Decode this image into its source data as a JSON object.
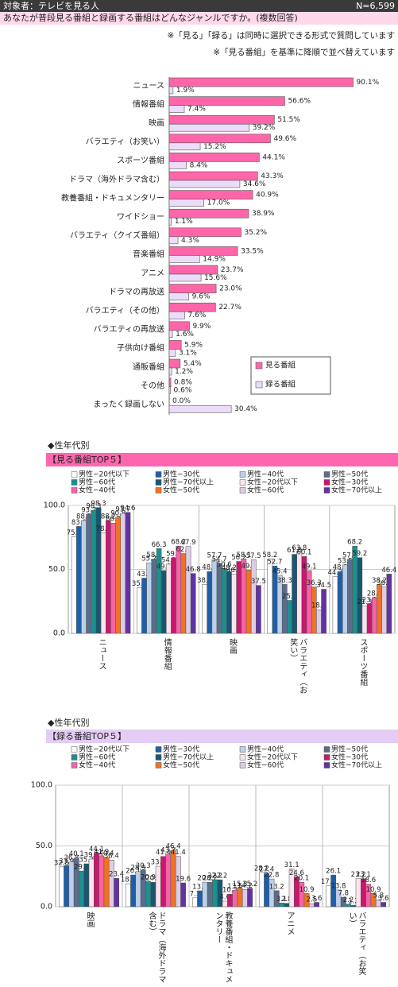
{
  "header": {
    "target": "対象者：テレビを見る人",
    "n": "N=6,599",
    "question": "あなたが普段見る番組と録画する番組はどんなジャンルですか。(複数回答)",
    "notes": [
      "※「見る」「録る」は同時に選択できる形式で質問しています",
      "※「見る番組」を基準に降順で並べ替えています"
    ]
  },
  "chart_data": [
    {
      "type": "bar",
      "orientation": "horizontal",
      "legend": "lower right",
      "categories": [
        "ニュース",
        "情報番組",
        "映画",
        "バラエティ（お笑い）",
        "スポーツ番組",
        "ドラマ（海外ドラマ含む）",
        "教養番組・ドキュメンタリー",
        "ワイドショー",
        "バラエティ（クイズ番組）",
        "音楽番組",
        "アニメ",
        "ドラマの再放送",
        "バラエティ（その他）",
        "バラエティの再放送",
        "子供向け番組",
        "通販番組",
        "その他",
        "まったく録画しない"
      ],
      "xlim": [
        0,
        100
      ],
      "series": [
        {
          "name": "見る番組",
          "color": "#ff66aa",
          "values": [
            90.1,
            56.6,
            51.5,
            49.6,
            44.1,
            43.3,
            40.9,
            38.9,
            35.2,
            33.5,
            23.7,
            23.0,
            22.7,
            9.9,
            5.9,
            5.4,
            0.8,
            0.0
          ],
          "value_labels": [
            "90.1%",
            "56.6%",
            "51.5%",
            "49.6%",
            "44.1%",
            "43.3%",
            "40.9%",
            "38.9%",
            "35.2%",
            "33.5%",
            "23.7%",
            "23.0%",
            "22.7%",
            "9.9%",
            "5.9%",
            "5.4%",
            "0.8%",
            "0.0%"
          ]
        },
        {
          "name": "録る番組",
          "color": "#ecdcfa",
          "values": [
            1.9,
            7.4,
            39.2,
            15.2,
            8.4,
            34.6,
            17.0,
            1.1,
            4.3,
            14.9,
            15.6,
            9.6,
            7.6,
            1.6,
            3.1,
            1.2,
            0.6,
            30.4
          ],
          "value_labels": [
            "1.9%",
            "7.4%",
            "39.2%",
            "15.2%",
            "8.4%",
            "34.6%",
            "17.0%",
            "1.1%",
            "4.3%",
            "14.9%",
            "15.6%",
            "9.6%",
            "7.6%",
            "1.6%",
            "3.1%",
            "1.2%",
            "0.6%",
            "30.4%"
          ]
        }
      ]
    },
    {
      "type": "bar",
      "section": "◆性年代別",
      "title": "【見る番組TOP５】",
      "title_background": "#ff66b0",
      "grid": true,
      "categories": [
        "ニュース",
        "情報番組",
        "映画",
        "バラエティ（お笑い）",
        "スポーツ番組"
      ],
      "ylim": [
        0,
        100
      ],
      "yticks": [
        {
          "value": 0,
          "label": "0.0"
        },
        {
          "value": 50,
          "label": "50.0"
        },
        {
          "value": 100,
          "label": "100.0"
        }
      ],
      "series": [
        {
          "name": "男性−20代以下",
          "color": "#ffffff",
          "values": [
            75.6,
            35.6,
            38.3,
            58.2,
            44.3
          ]
        },
        {
          "name": "男性−30代",
          "color": "#1f5fa8",
          "values": [
            83.6,
            43.2,
            48.3,
            52.7,
            48.3
          ]
        },
        {
          "name": "男性−40代",
          "color": "#bcd0e8",
          "values": [
            88.2,
            55.2,
            57.7,
            45.4,
            53.5
          ]
        },
        {
          "name": "男性−50代",
          "color": "#5c6c8c",
          "values": [
            93.2,
            58.1,
            54.7,
            38.3,
            57.9
          ]
        },
        {
          "name": "男性−60代",
          "color": "#1e8f8f",
          "values": [
            96.3,
            66.3,
            50.6,
            25.8,
            68.2
          ]
        },
        {
          "name": "男性−70代以上",
          "color": "#1a5670",
          "values": [
            98.3,
            49.1,
            48.2,
            61.8,
            59.2
          ]
        },
        {
          "name": "女性−20代以下",
          "color": "#fbe4ee",
          "values": [
            78.5,
            54.1,
            46.3,
            63.8,
            21.3
          ]
        },
        {
          "name": "女性−30代",
          "color": "#c8186e",
          "values": [
            88.2,
            59.1,
            56.2,
            60.1,
            23.1
          ]
        },
        {
          "name": "女性−40代",
          "color": "#f464a6",
          "values": [
            86.2,
            68.2,
            58.1,
            49.1,
            28.1
          ]
        },
        {
          "name": "女性−50代",
          "color": "#f07222",
          "values": [
            90.8,
            62.4,
            49.5,
            36.3,
            38.2
          ]
        },
        {
          "name": "女性−60代",
          "color": "#dccce4",
          "values": [
            93.7,
            67.9,
            57.5,
            18.5,
            36.3
          ]
        },
        {
          "name": "女性−70代以上",
          "color": "#6232a2",
          "values": [
            94.6,
            46.8,
            37.5,
            34.5,
            46.4
          ]
        }
      ]
    },
    {
      "type": "bar",
      "section": "◆性年代別",
      "title": "【録る番組TOP５】",
      "title_background": "#e4ccf4",
      "grid": true,
      "categories": [
        "映画",
        "ドラマ（海外ドラマ含む）",
        "教養番組・ドキュメンタリー",
        "アニメ",
        "バラエティ（お笑い）"
      ],
      "ylim": [
        0,
        100
      ],
      "yticks": [
        {
          "value": 0,
          "label": "0.0"
        },
        {
          "value": 50,
          "label": "50.0"
        },
        {
          "value": 100,
          "label": "100.0"
        }
      ],
      "series": [
        {
          "name": "男性−20代以下",
          "color": "#ffffff",
          "values": [
            32.8,
            18.9,
            7.3,
            28.2,
            17.2
          ]
        },
        {
          "name": "男性−30代",
          "color": "#1f5fa8",
          "values": [
            33.9,
            26.1,
            13.1,
            27.4,
            26.1
          ]
        },
        {
          "name": "男性−40代",
          "color": "#bcd0e8",
          "values": [
            36.8,
            28.9,
            20.2,
            22.8,
            13.8
          ]
        },
        {
          "name": "男性−50代",
          "color": "#5c6c8c",
          "values": [
            40.1,
            30.3,
            20.2,
            13.2,
            7.8
          ]
        },
        {
          "name": "男性−60代",
          "color": "#1e8f8f",
          "values": [
            29.4,
            20.9,
            22.2,
            3.1,
            2.2
          ]
        },
        {
          "name": "男性−70代以上",
          "color": "#1a5670",
          "values": [
            35.3,
            20.2,
            22.2,
            2.8,
            1.2
          ]
        },
        {
          "name": "女性−20代以下",
          "color": "#fbe4ee",
          "values": [
            39.2,
            33.3,
            4.6,
            31.1,
            23.2
          ]
        },
        {
          "name": "女性−30代",
          "color": "#c8186e",
          "values": [
            44.1,
            41.4,
            10.3,
            24.6,
            23.1
          ]
        },
        {
          "name": "女性−40代",
          "color": "#f464a6",
          "values": [
            41.9,
            43.2,
            13.5,
            20.1,
            18.6
          ]
        },
        {
          "name": "女性−50代",
          "color": "#f07222",
          "values": [
            40.4,
            46.4,
            15.3,
            10.9,
            10.9
          ]
        },
        {
          "name": "女性−60代",
          "color": "#dccce4",
          "values": [
            38.4,
            41.4,
            14.2,
            2.5,
            5.8
          ]
        },
        {
          "name": "女性−70代以上",
          "color": "#6232a2",
          "values": [
            23.4,
            19.6,
            15.2,
            3.6,
            3.6
          ]
        }
      ]
    }
  ]
}
